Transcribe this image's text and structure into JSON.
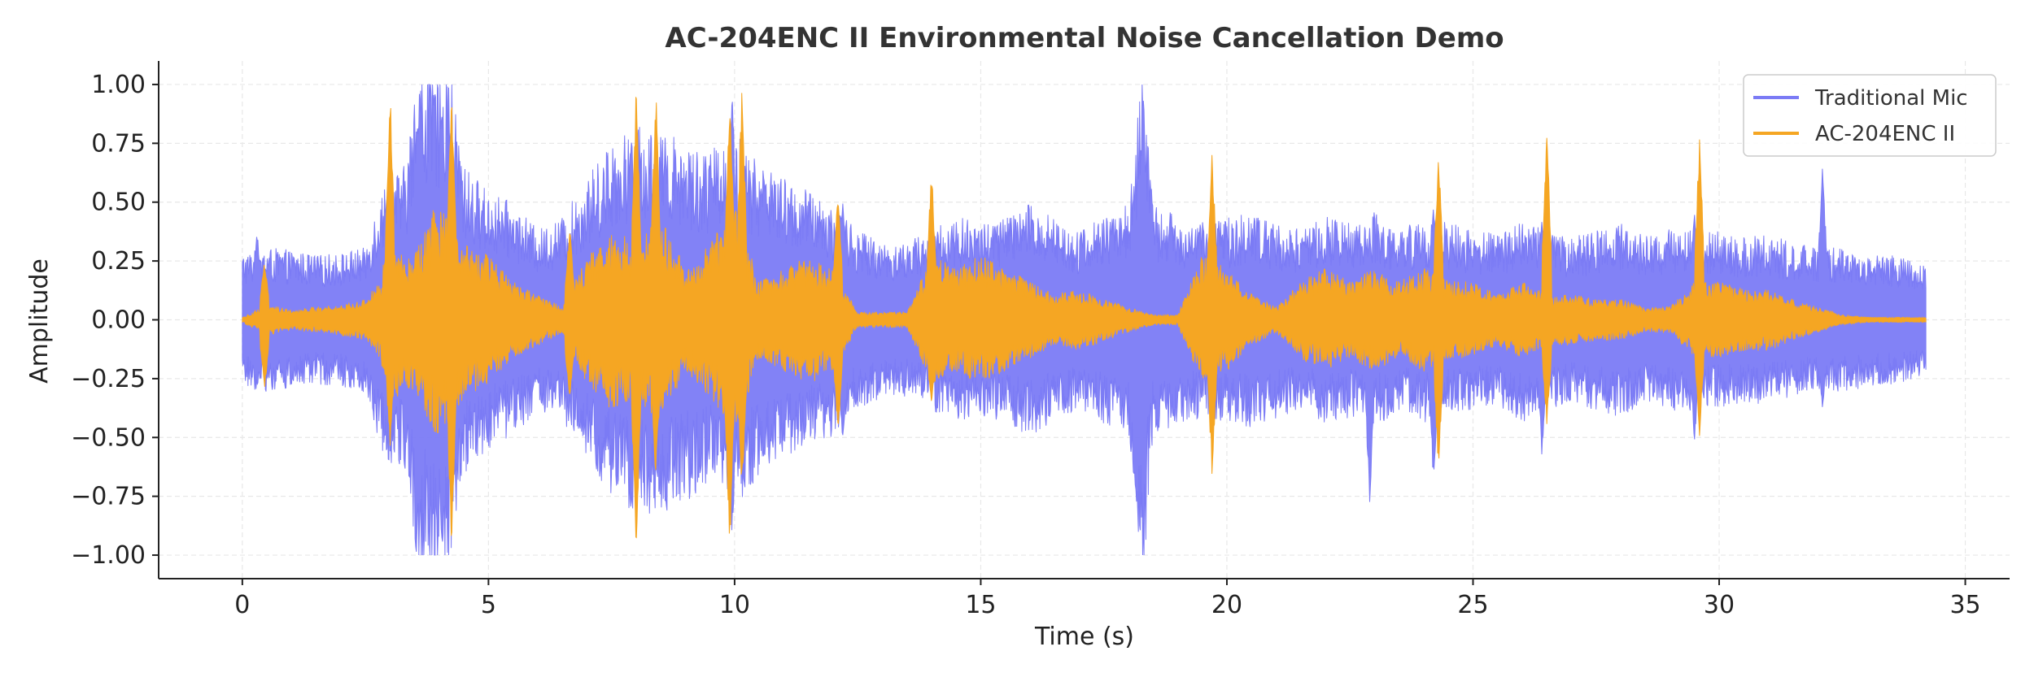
{
  "chart_data": {
    "type": "line",
    "title": "AC-204ENC II Environmental Noise Cancellation Demo",
    "xlabel": "Time (s)",
    "ylabel": "Amplitude",
    "xlim": [
      -1.7,
      35.9
    ],
    "ylim": [
      -1.1,
      1.1
    ],
    "x_ticks": [
      0,
      5,
      10,
      15,
      20,
      25,
      30,
      35
    ],
    "x_tick_labels": [
      "0",
      "5",
      "10",
      "15",
      "20",
      "25",
      "30",
      "35"
    ],
    "y_ticks": [
      1.0,
      0.75,
      0.5,
      0.25,
      0.0,
      -0.25,
      -0.5,
      -0.75,
      -1.0
    ],
    "y_tick_labels": [
      "1.00",
      "0.75",
      "0.50",
      "0.25",
      "0.00",
      "−0.25",
      "−0.50",
      "−0.75",
      "−1.00"
    ],
    "grid": true,
    "legend_position": "top-right",
    "duration_s": 34.2,
    "series": [
      {
        "name": "Traditional Mic",
        "color": "#7b7bf5",
        "clip": 1.0,
        "envelope": {
          "t": [
            0,
            0.5,
            1.0,
            1.5,
            2.0,
            2.5,
            2.8,
            3.0,
            3.3,
            3.6,
            3.9,
            4.2,
            4.5,
            5.0,
            5.5,
            6.0,
            6.5,
            7.0,
            7.5,
            8.0,
            8.5,
            9.0,
            9.5,
            10.0,
            10.5,
            11.0,
            11.5,
            12.0,
            12.5,
            13.0,
            13.5,
            14.0,
            14.5,
            15.0,
            15.5,
            16.0,
            16.5,
            17.0,
            17.5,
            18.0,
            18.3,
            18.5,
            19.0,
            19.5,
            20.0,
            20.5,
            21.0,
            21.5,
            22.0,
            22.5,
            23.0,
            23.5,
            24.0,
            24.5,
            25.0,
            25.5,
            26.0,
            26.5,
            27.0,
            27.5,
            28.0,
            28.5,
            29.0,
            29.5,
            30.0,
            30.5,
            31.0,
            31.5,
            32.0,
            32.5,
            33.0,
            33.5,
            34.2
          ],
          "amp": [
            0.26,
            0.28,
            0.27,
            0.25,
            0.26,
            0.28,
            0.5,
            0.55,
            0.6,
            1.0,
            1.0,
            1.0,
            0.6,
            0.5,
            0.45,
            0.35,
            0.4,
            0.55,
            0.7,
            0.75,
            0.75,
            0.7,
            0.65,
            0.75,
            0.6,
            0.55,
            0.5,
            0.45,
            0.35,
            0.3,
            0.3,
            0.35,
            0.4,
            0.38,
            0.4,
            0.45,
            0.4,
            0.35,
            0.4,
            0.45,
            1.0,
            0.45,
            0.4,
            0.38,
            0.4,
            0.42,
            0.38,
            0.35,
            0.4,
            0.38,
            0.42,
            0.35,
            0.4,
            0.38,
            0.35,
            0.33,
            0.4,
            0.35,
            0.32,
            0.35,
            0.38,
            0.33,
            0.35,
            0.36,
            0.34,
            0.32,
            0.33,
            0.3,
            0.28,
            0.28,
            0.26,
            0.25,
            0.22
          ]
        },
        "peaks": [
          {
            "t": 0.3,
            "pos": 0.4,
            "neg": -0.3
          },
          {
            "t": 3.6,
            "pos": 1.0,
            "neg": -1.0
          },
          {
            "t": 4.05,
            "pos": 1.0,
            "neg": -1.0
          },
          {
            "t": 7.9,
            "pos": 0.85,
            "neg": -0.9
          },
          {
            "t": 8.6,
            "pos": 0.8,
            "neg": -0.85
          },
          {
            "t": 9.95,
            "pos": 1.0,
            "neg": -0.95
          },
          {
            "t": 10.6,
            "pos": 0.7,
            "neg": -0.65
          },
          {
            "t": 12.2,
            "pos": 0.55,
            "neg": -0.55
          },
          {
            "t": 18.3,
            "pos": 1.0,
            "neg": -1.0
          },
          {
            "t": 22.9,
            "pos": 0.4,
            "neg": -0.82
          },
          {
            "t": 24.2,
            "pos": 0.5,
            "neg": -0.75
          },
          {
            "t": 26.4,
            "pos": 0.45,
            "neg": -0.6
          },
          {
            "t": 29.5,
            "pos": 0.5,
            "neg": -0.55
          },
          {
            "t": 32.1,
            "pos": 0.67,
            "neg": -0.4
          }
        ]
      },
      {
        "name": "AC-204ENC II",
        "color": "#f5a623",
        "clip": 1.0,
        "envelope": {
          "t": [
            0,
            0.5,
            1.0,
            1.5,
            2.0,
            2.5,
            2.8,
            3.0,
            3.3,
            3.6,
            3.9,
            4.2,
            4.5,
            5.0,
            5.5,
            6.0,
            6.5,
            7.0,
            7.5,
            8.0,
            8.5,
            9.0,
            9.5,
            10.0,
            10.5,
            11.0,
            11.5,
            12.0,
            12.5,
            13.0,
            13.5,
            14.0,
            14.5,
            15.0,
            15.5,
            16.0,
            16.5,
            17.0,
            17.5,
            18.0,
            18.5,
            19.0,
            19.5,
            20.0,
            20.5,
            21.0,
            21.5,
            22.0,
            22.5,
            23.0,
            23.5,
            24.0,
            24.5,
            25.0,
            25.5,
            26.0,
            26.5,
            27.0,
            27.5,
            28.0,
            28.5,
            29.0,
            29.5,
            30.0,
            30.5,
            31.0,
            31.5,
            32.0,
            32.5,
            33.0,
            33.5,
            34.2
          ],
          "amp": [
            0.01,
            0.06,
            0.04,
            0.05,
            0.06,
            0.08,
            0.15,
            0.35,
            0.25,
            0.3,
            0.45,
            0.4,
            0.3,
            0.25,
            0.15,
            0.1,
            0.05,
            0.25,
            0.35,
            0.3,
            0.4,
            0.2,
            0.3,
            0.45,
            0.15,
            0.2,
            0.25,
            0.2,
            0.03,
            0.03,
            0.03,
            0.25,
            0.2,
            0.25,
            0.2,
            0.15,
            0.1,
            0.12,
            0.08,
            0.05,
            0.02,
            0.02,
            0.25,
            0.2,
            0.1,
            0.05,
            0.15,
            0.2,
            0.15,
            0.2,
            0.15,
            0.2,
            0.15,
            0.15,
            0.1,
            0.15,
            0.1,
            0.1,
            0.08,
            0.08,
            0.05,
            0.05,
            0.15,
            0.15,
            0.12,
            0.12,
            0.08,
            0.05,
            0.02,
            0.01,
            0.01,
            0.01
          ]
        },
        "peaks": [
          {
            "t": 0.45,
            "pos": 0.25,
            "neg": -0.3
          },
          {
            "t": 3.0,
            "pos": 1.0,
            "neg": -0.55
          },
          {
            "t": 4.25,
            "pos": 0.98,
            "neg": -0.97
          },
          {
            "t": 6.65,
            "pos": 0.4,
            "neg": -0.35
          },
          {
            "t": 8.0,
            "pos": 1.0,
            "neg": -1.0
          },
          {
            "t": 8.4,
            "pos": 1.0,
            "neg": -0.7
          },
          {
            "t": 9.9,
            "pos": 1.0,
            "neg": -1.0
          },
          {
            "t": 10.15,
            "pos": 1.0,
            "neg": -0.75
          },
          {
            "t": 12.1,
            "pos": 0.55,
            "neg": -0.5
          },
          {
            "t": 14.0,
            "pos": 0.65,
            "neg": -0.4
          },
          {
            "t": 19.7,
            "pos": 0.73,
            "neg": -0.67
          },
          {
            "t": 24.3,
            "pos": 0.72,
            "neg": -0.65
          },
          {
            "t": 26.5,
            "pos": 0.8,
            "neg": -0.45
          },
          {
            "t": 29.6,
            "pos": 0.78,
            "neg": -0.5
          }
        ]
      }
    ]
  }
}
